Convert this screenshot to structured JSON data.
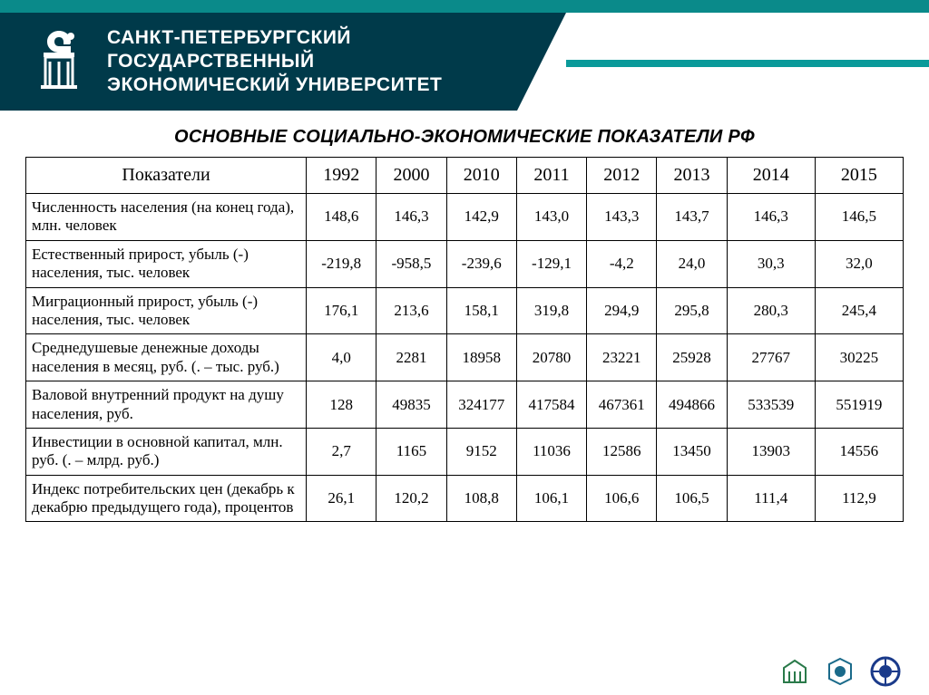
{
  "header": {
    "line1": "САНКТ-ПЕТЕРБУРГСКИЙ",
    "line2": "ГОСУДАРСТВЕННЫЙ",
    "line3": "ЭКОНОМИЧЕСКИЙ УНИВЕРСИТЕТ"
  },
  "title": "ОСНОВНЫЕ СОЦИАЛЬНО-ЭКОНОМИЧЕСКИЕ ПОКАЗАТЕЛИ РФ",
  "table": {
    "header_label": "Показатели",
    "years": [
      "1992",
      "2000",
      "2010",
      "2011",
      "2012",
      "2013",
      "2014",
      "2015"
    ],
    "rows": [
      {
        "label": "Численность населения (на конец года), млн. человек",
        "values": [
          "148,6",
          "146,3",
          "142,9",
          "143,0",
          "143,3",
          "143,7",
          "146,3",
          "146,5"
        ]
      },
      {
        "label": "Естественный прирост, убыль (-) населения, тыс. человек",
        "values": [
          "-219,8",
          "-958,5",
          "-239,6",
          "-129,1",
          "-4,2",
          "24,0",
          "30,3",
          "32,0"
        ]
      },
      {
        "label": "Миграционный прирост, убыль (-) населения, тыс. человек",
        "values": [
          "176,1",
          "213,6",
          "158,1",
          "319,8",
          "294,9",
          "295,8",
          "280,3",
          "245,4"
        ]
      },
      {
        "label": "Среднедушевые денежные доходы населения в месяц, руб. (. – тыс. руб.)",
        "values": [
          "4,0",
          "2281",
          "18958",
          "20780",
          "23221",
          "25928",
          "27767",
          "30225"
        ]
      },
      {
        "label": "Валовой внутренний продукт на душу населения, руб.",
        "values": [
          "128",
          "49835",
          "324177",
          "417584",
          "467361",
          "494866",
          "533539",
          "551919"
        ]
      },
      {
        "label": "Инвестиции в основной капитал, млн. руб. (. – млрд. руб.)",
        "values": [
          "2,7",
          "1165",
          "9152",
          "11036",
          "12586",
          "13450",
          "13903",
          "14556"
        ]
      },
      {
        "label": "Индекс потребительских цен (декабрь к декабрю предыдущего года), процентов",
        "values": [
          "26,1",
          "120,2",
          "108,8",
          "106,1",
          "106,6",
          "106,5",
          "111,4",
          "112,9"
        ]
      }
    ]
  },
  "colors": {
    "teal": "#0a8a8a",
    "dark": "#003a4a",
    "border": "#000000",
    "bg": "#ffffff"
  }
}
